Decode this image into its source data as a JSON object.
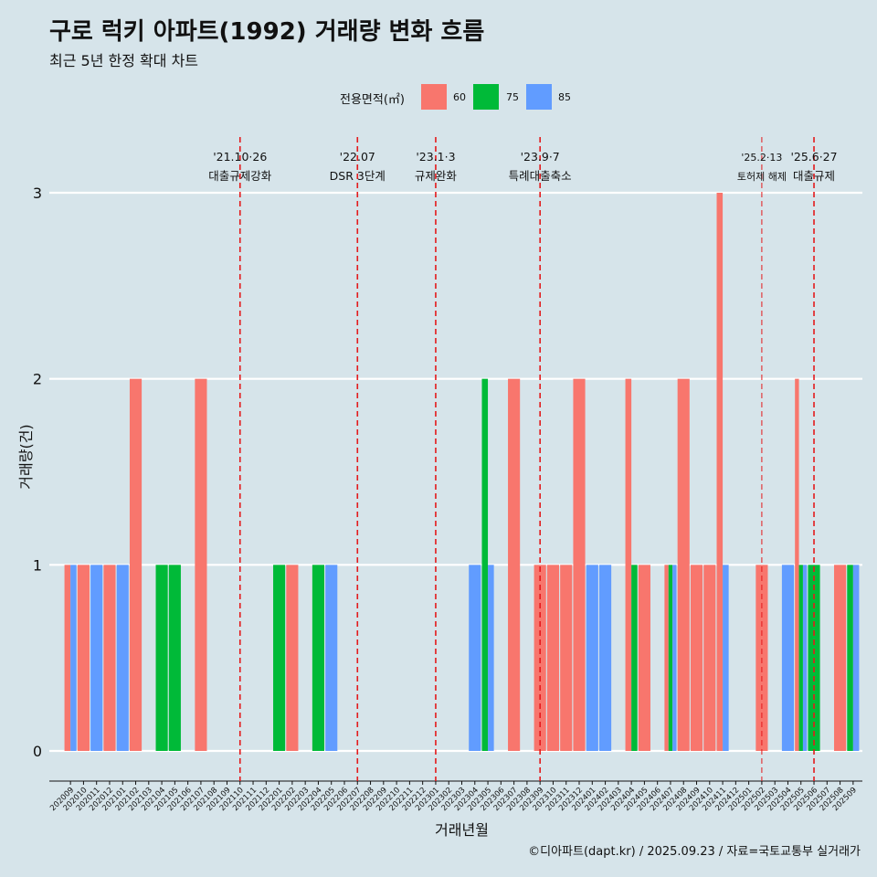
{
  "title": "구로 럭키 아파트(1992) 거래량 변화 흐름",
  "subtitle": "최근 5년 한정 확대 차트",
  "caption": "©디아파트(dapt.kr) / 2025.09.23 / 자료=국토교통부 실거래가",
  "legend": {
    "title": "전용면적(㎡)",
    "items": [
      {
        "label": "60",
        "color": "#f8766d"
      },
      {
        "label": "75",
        "color": "#00ba38"
      },
      {
        "label": "85",
        "color": "#619cff"
      }
    ]
  },
  "chart_data": {
    "type": "bar",
    "title": "구로 럭키 아파트(1992) 거래량 변화 흐름",
    "xlabel": "거래년월",
    "ylabel": "거래량(건)",
    "ylim": [
      0,
      3
    ],
    "yticks": [
      0,
      1,
      2,
      3
    ],
    "grid": true,
    "legend_position": "top",
    "categories": [
      "202009",
      "202010",
      "202011",
      "202012",
      "202101",
      "202102",
      "202103",
      "202104",
      "202105",
      "202106",
      "202107",
      "202108",
      "202109",
      "202110",
      "202111",
      "202112",
      "202201",
      "202202",
      "202203",
      "202204",
      "202205",
      "202206",
      "202207",
      "202208",
      "202209",
      "202210",
      "202211",
      "202212",
      "202301",
      "202302",
      "202303",
      "202304",
      "202305",
      "202306",
      "202307",
      "202308",
      "202309",
      "202310",
      "202311",
      "202312",
      "202401",
      "202402",
      "202403",
      "202404",
      "202405",
      "202406",
      "202407",
      "202408",
      "202409",
      "202410",
      "202411",
      "202412",
      "202501",
      "202502",
      "202503",
      "202504",
      "202505",
      "202506",
      "202507",
      "202508",
      "202509"
    ],
    "series": [
      {
        "name": "60",
        "color": "#f8766d",
        "values": [
          1,
          1,
          0,
          1,
          0,
          2,
          0,
          0,
          0,
          0,
          2,
          0,
          0,
          0,
          0,
          0,
          0,
          1,
          0,
          0,
          0,
          0,
          0,
          0,
          0,
          0,
          0,
          0,
          0,
          0,
          0,
          0,
          0,
          0,
          2,
          0,
          1,
          1,
          1,
          2,
          0,
          0,
          0,
          2,
          1,
          0,
          1,
          2,
          1,
          1,
          3,
          0,
          0,
          1,
          0,
          0,
          2,
          0,
          0,
          1,
          0
        ]
      },
      {
        "name": "75",
        "color": "#00ba38",
        "values": [
          0,
          0,
          0,
          0,
          0,
          0,
          0,
          1,
          1,
          0,
          0,
          0,
          0,
          0,
          0,
          0,
          1,
          0,
          0,
          1,
          0,
          0,
          0,
          0,
          0,
          0,
          0,
          0,
          0,
          0,
          0,
          0,
          2,
          0,
          0,
          0,
          0,
          0,
          0,
          0,
          0,
          0,
          0,
          1,
          0,
          0,
          1,
          0,
          0,
          0,
          0,
          0,
          0,
          0,
          0,
          0,
          1,
          1,
          0,
          0,
          1
        ]
      },
      {
        "name": "85",
        "color": "#619cff",
        "values": [
          1,
          0,
          1,
          0,
          1,
          0,
          0,
          0,
          0,
          0,
          0,
          0,
          0,
          0,
          0,
          0,
          0,
          0,
          0,
          0,
          1,
          0,
          0,
          0,
          0,
          0,
          0,
          0,
          0,
          0,
          0,
          1,
          1,
          0,
          0,
          0,
          0,
          0,
          0,
          0,
          1,
          1,
          0,
          0,
          0,
          0,
          1,
          0,
          0,
          0,
          1,
          0,
          0,
          0,
          0,
          1,
          1,
          0,
          0,
          0,
          1
        ]
      }
    ],
    "annotations": [
      {
        "at": "202110",
        "date": "'21.10·26",
        "text": "대출규제강화"
      },
      {
        "at": "202207",
        "date": "'22.07",
        "text": "DSR 3단계"
      },
      {
        "at": "202301",
        "date": "'23.1·3",
        "text": "규제완화"
      },
      {
        "at": "202309",
        "date": "'23.9·7",
        "text": "특례대출축소"
      },
      {
        "at": "202502",
        "date": "'25.2·13",
        "text": "토허제 해제"
      },
      {
        "at": "202506",
        "date": "'25.6·27",
        "text": "대출규제"
      }
    ]
  }
}
